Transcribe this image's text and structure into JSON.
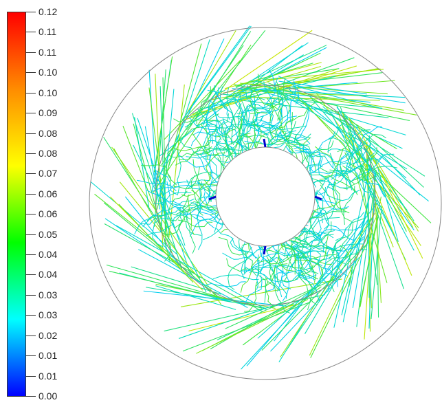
{
  "colorbar": {
    "labels": [
      "0.12",
      "0.11",
      "0.11",
      "0.10",
      "0.10",
      "0.09",
      "0.08",
      "0.08",
      "0.07",
      "0.06",
      "0.06",
      "0.05",
      "0.04",
      "0.04",
      "0.03",
      "0.03",
      "0.02",
      "0.01",
      "0.01",
      "0.00"
    ],
    "colors": [
      "#ff0000",
      "#ff8c00",
      "#ffff00",
      "#00ff00",
      "#00ffff",
      "#0000ff"
    ]
  },
  "diagram": {
    "outer_ring_color": "#888888",
    "inner_hub_color": "#888888",
    "blade_color": "#0000cc"
  }
}
